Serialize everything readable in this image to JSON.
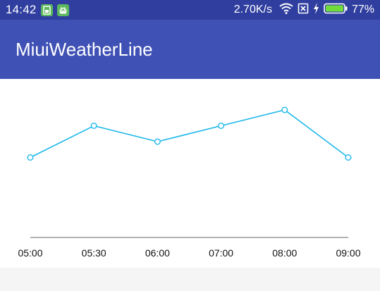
{
  "status_bar": {
    "time": "14:42",
    "net_speed": "2.70K/s",
    "battery_percent": "77%",
    "battery_level": 0.77,
    "icons": [
      "sim-app-icon",
      "android-app-icon",
      "wifi-icon",
      "no-sim-icon",
      "charging-icon",
      "battery-icon"
    ]
  },
  "app_bar": {
    "title": "MiuiWeatherLine"
  },
  "colors": {
    "status_bar": "#303f9f",
    "app_bar": "#3f51b5",
    "line": "#1cb7ec",
    "axis": "#999999"
  },
  "chart_data": {
    "type": "line",
    "title": "",
    "xlabel": "",
    "ylabel": "",
    "categories": [
      "05:00",
      "05:30",
      "06:00",
      "07:00",
      "08:00",
      "09:00"
    ],
    "series": [
      {
        "values": [
          1,
          3,
          2,
          3,
          4,
          1
        ]
      }
    ],
    "ylim": [
      0,
      4
    ],
    "grid": false,
    "legend": "none"
  }
}
